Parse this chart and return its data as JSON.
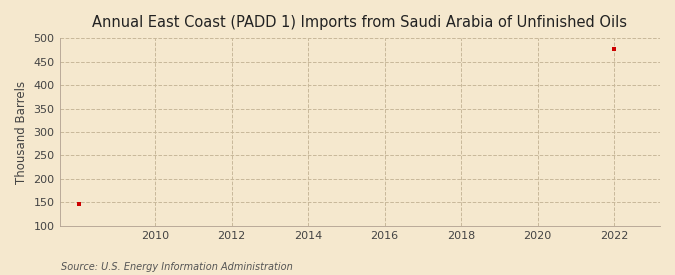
{
  "title": "Annual East Coast (PADD 1) Imports from Saudi Arabia of Unfinished Oils",
  "ylabel": "Thousand Barrels",
  "source": "Source: U.S. Energy Information Administration",
  "background_color": "#f5e8ce",
  "plot_background_color": "#f5e8ce",
  "data_x": [
    2008,
    2022
  ],
  "data_y": [
    147,
    476
  ],
  "marker_color": "#cc0000",
  "marker": "s",
  "marker_size": 3.5,
  "xlim": [
    2007.5,
    2023.2
  ],
  "ylim": [
    100,
    500
  ],
  "xticks": [
    2010,
    2012,
    2014,
    2016,
    2018,
    2020,
    2022
  ],
  "yticks": [
    100,
    150,
    200,
    250,
    300,
    350,
    400,
    450,
    500
  ],
  "grid_color": "#c8b89a",
  "grid_style": "--",
  "grid_linewidth": 0.7,
  "title_fontsize": 10.5,
  "axis_fontsize": 8.5,
  "tick_fontsize": 8,
  "source_fontsize": 7
}
